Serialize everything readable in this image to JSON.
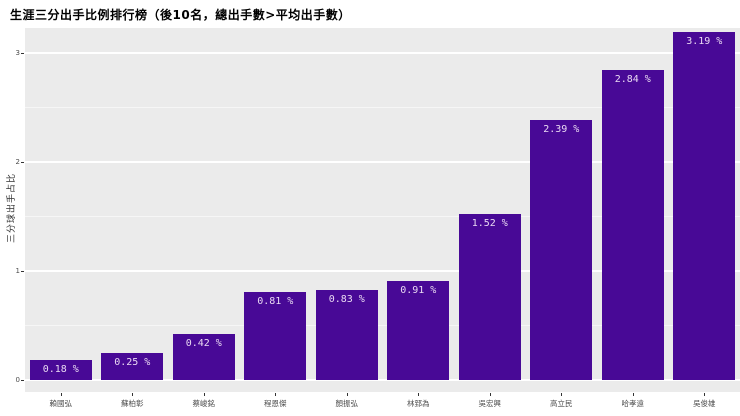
{
  "chart_data": {
    "type": "bar",
    "title": "生涯三分出手比例排行榜（後10名，總出手數>平均出手數）",
    "ylabel": "三分球出手占比",
    "xlabel": "",
    "categories": [
      "賴國弘",
      "蘇柏彰",
      "蔡峻銘",
      "程恩傑",
      "顏振弘",
      "林郅為",
      "吳宏興",
      "高立民",
      "哈孝遠",
      "吳俊雄"
    ],
    "values": [
      0.18,
      0.25,
      0.42,
      0.81,
      0.83,
      0.91,
      1.52,
      2.39,
      2.84,
      3.19
    ],
    "value_label_suffix": " %",
    "yticks": [
      0,
      1,
      2,
      3
    ],
    "ylim": [
      -0.11,
      3.23
    ],
    "grid": "horizontal major + minor",
    "legend": false,
    "colors": {
      "bar_fill": "#480996",
      "bar_value_text": "#EADAF3",
      "plot_background": "#EBEBEB",
      "figure_background": "#FFFFFF",
      "grid_major": "#FFFFFF",
      "grid_minor": "rgba(255,255,255,0.55)",
      "axis_tick_text": "#4D4D4D",
      "title_text": "#000000"
    }
  }
}
